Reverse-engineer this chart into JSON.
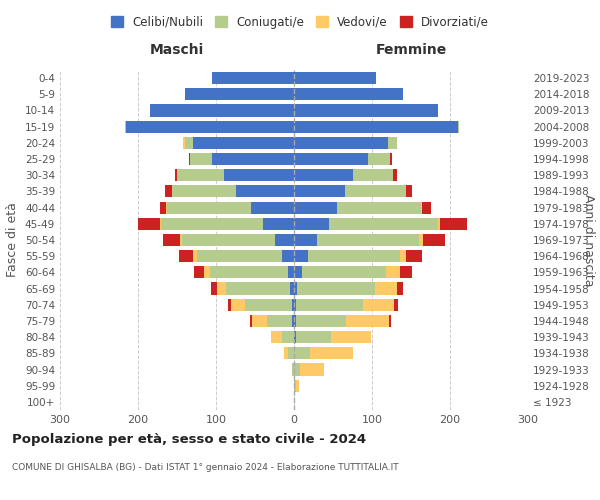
{
  "age_groups": [
    "100+",
    "95-99",
    "90-94",
    "85-89",
    "80-84",
    "75-79",
    "70-74",
    "65-69",
    "60-64",
    "55-59",
    "50-54",
    "45-49",
    "40-44",
    "35-39",
    "30-34",
    "25-29",
    "20-24",
    "15-19",
    "10-14",
    "5-9",
    "0-4"
  ],
  "birth_years": [
    "≤ 1923",
    "1924-1928",
    "1929-1933",
    "1934-1938",
    "1939-1943",
    "1944-1948",
    "1949-1953",
    "1954-1958",
    "1959-1963",
    "1964-1968",
    "1969-1973",
    "1974-1978",
    "1979-1983",
    "1984-1988",
    "1989-1993",
    "1994-1998",
    "1999-2003",
    "2004-2008",
    "2009-2013",
    "2014-2018",
    "2019-2023"
  ],
  "colors": {
    "celibi": "#4472c4",
    "coniugati": "#b5cc8e",
    "vedovi": "#ffc966",
    "divorziati": "#cc2222"
  },
  "males": {
    "celibi": [
      0,
      0,
      0,
      0,
      0,
      2,
      3,
      5,
      8,
      15,
      25,
      40,
      55,
      75,
      90,
      105,
      130,
      215,
      185,
      140,
      105
    ],
    "coniugati": [
      0,
      0,
      2,
      8,
      15,
      32,
      60,
      82,
      100,
      110,
      118,
      130,
      108,
      82,
      60,
      28,
      10,
      2,
      0,
      0,
      0
    ],
    "vedovi": [
      0,
      0,
      1,
      5,
      15,
      20,
      18,
      12,
      8,
      5,
      3,
      2,
      1,
      0,
      0,
      0,
      2,
      0,
      0,
      0,
      0
    ],
    "divorziati": [
      0,
      0,
      0,
      0,
      0,
      2,
      3,
      8,
      12,
      18,
      22,
      28,
      8,
      8,
      2,
      2,
      0,
      0,
      0,
      0,
      0
    ]
  },
  "females": {
    "celibi": [
      0,
      0,
      0,
      0,
      2,
      2,
      3,
      4,
      10,
      18,
      30,
      45,
      55,
      65,
      75,
      95,
      120,
      210,
      185,
      140,
      105
    ],
    "coniugati": [
      0,
      2,
      8,
      20,
      45,
      65,
      85,
      100,
      108,
      118,
      130,
      140,
      108,
      78,
      52,
      28,
      12,
      2,
      0,
      0,
      0
    ],
    "vedovi": [
      0,
      5,
      30,
      55,
      52,
      55,
      40,
      28,
      18,
      8,
      5,
      2,
      1,
      0,
      0,
      0,
      0,
      0,
      0,
      0,
      0
    ],
    "divorziati": [
      0,
      0,
      0,
      0,
      0,
      2,
      5,
      8,
      15,
      20,
      28,
      35,
      12,
      8,
      5,
      2,
      0,
      0,
      0,
      0,
      0
    ]
  },
  "xlim": 300,
  "title": "Popolazione per età, sesso e stato civile - 2024",
  "subtitle": "COMUNE DI GHISALBA (BG) - Dati ISTAT 1° gennaio 2024 - Elaborazione TUTTITALIA.IT",
  "xlabel_left": "Maschi",
  "xlabel_right": "Femmine",
  "ylabel_left": "Fasce di età",
  "ylabel_right": "Anni di nascita",
  "legend_labels": [
    "Celibi/Nubili",
    "Coniugati/e",
    "Vedovi/e",
    "Divorziati/e"
  ],
  "background_color": "#ffffff",
  "grid_color": "#cccccc"
}
